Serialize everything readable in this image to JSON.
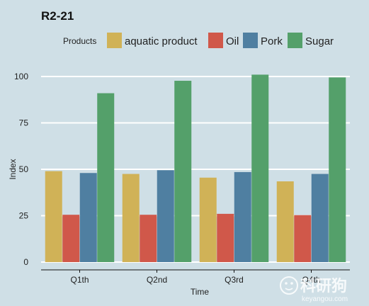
{
  "chart_data": {
    "type": "bar",
    "title": "R2-21",
    "xlabel": "Time",
    "ylabel": "Index",
    "ylim": [
      0,
      105
    ],
    "yticks": [
      0,
      25,
      50,
      75,
      100
    ],
    "grid": true,
    "legend_title": "Products",
    "legend_position": "top",
    "categories": [
      "Q1th",
      "Q2nd",
      "Q3rd",
      "Q4th"
    ],
    "series": [
      {
        "name": "aquatic product",
        "color": "#d0b257",
        "values": [
          49,
          47.5,
          45.5,
          43.5
        ]
      },
      {
        "name": "Oil",
        "color": "#d0584a",
        "values": [
          25.5,
          25.5,
          26,
          25.3
        ]
      },
      {
        "name": "Pork",
        "color": "#4f7fa1",
        "values": [
          48,
          49.5,
          48.5,
          47.5
        ]
      },
      {
        "name": "Sugar",
        "color": "#54a06a",
        "values": [
          91,
          97.7,
          101,
          99.5
        ]
      }
    ]
  },
  "watermark": {
    "text": "科研狗",
    "subtext": "keyangou.com"
  }
}
